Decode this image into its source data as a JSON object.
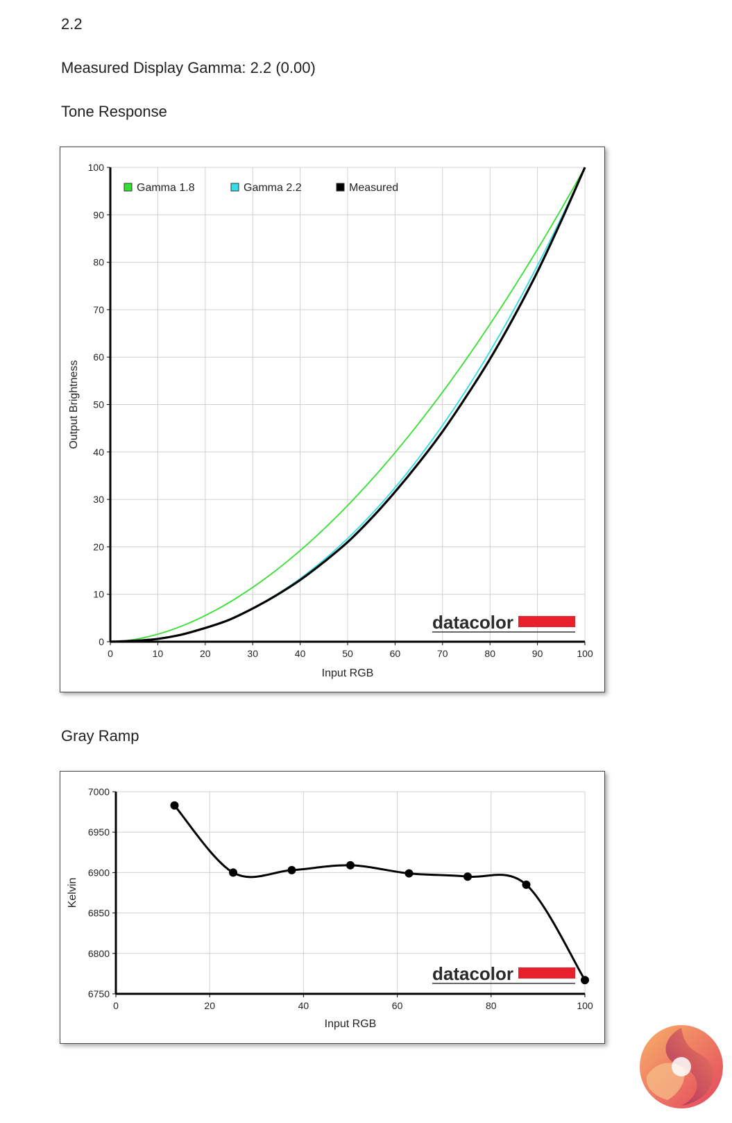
{
  "header": {
    "gamma_value": "2.2",
    "measured_text": "Measured Display Gamma: 2.2 (0.00)",
    "tone_title": "Tone Response",
    "gray_title": "Gray Ramp"
  },
  "brand": {
    "name": "datacolor",
    "bar_color": "#e8202b"
  },
  "chart_data": [
    {
      "type": "line",
      "title": "Tone Response",
      "xlabel": "Input RGB",
      "ylabel": "Output Brightness",
      "xlim": [
        0,
        100
      ],
      "ylim": [
        0,
        100
      ],
      "xticks": [
        0,
        10,
        20,
        30,
        40,
        50,
        60,
        70,
        80,
        90,
        100
      ],
      "yticks": [
        0,
        10,
        20,
        30,
        40,
        50,
        60,
        70,
        80,
        90,
        100
      ],
      "grid": true,
      "legend": "top-left",
      "series": [
        {
          "name": "Gamma 1.8",
          "color": "#33e033",
          "gamma": 1.8
        },
        {
          "name": "Gamma 2.2",
          "color": "#33dde8",
          "gamma": 2.2
        },
        {
          "name": "Measured",
          "color": "#000000",
          "x": [
            0,
            5,
            10,
            15,
            20,
            25,
            30,
            35,
            40,
            45,
            50,
            55,
            60,
            65,
            70,
            75,
            80,
            85,
            90,
            95,
            100
          ],
          "y": [
            0,
            0.2,
            0.6,
            1.5,
            2.9,
            4.6,
            7.0,
            9.8,
            13.0,
            16.8,
            21.0,
            26.0,
            31.6,
            37.7,
            44.3,
            51.7,
            59.6,
            68.4,
            78.0,
            88.7,
            100
          ]
        }
      ]
    },
    {
      "type": "line",
      "title": "Gray Ramp",
      "xlabel": "Input RGB",
      "ylabel": "Kelvin",
      "xlim": [
        0,
        100
      ],
      "ylim": [
        6750,
        7000
      ],
      "xticks": [
        0,
        20,
        40,
        60,
        80,
        100
      ],
      "yticks": [
        6750,
        6800,
        6850,
        6900,
        6950,
        7000
      ],
      "grid": true,
      "series": [
        {
          "name": "",
          "color": "#000000",
          "x": [
            12.5,
            25,
            37.5,
            50,
            62.5,
            75,
            87.5,
            100
          ],
          "y": [
            6983,
            6900,
            6903,
            6909,
            6899,
            6895,
            6885,
            6767
          ]
        }
      ]
    }
  ]
}
